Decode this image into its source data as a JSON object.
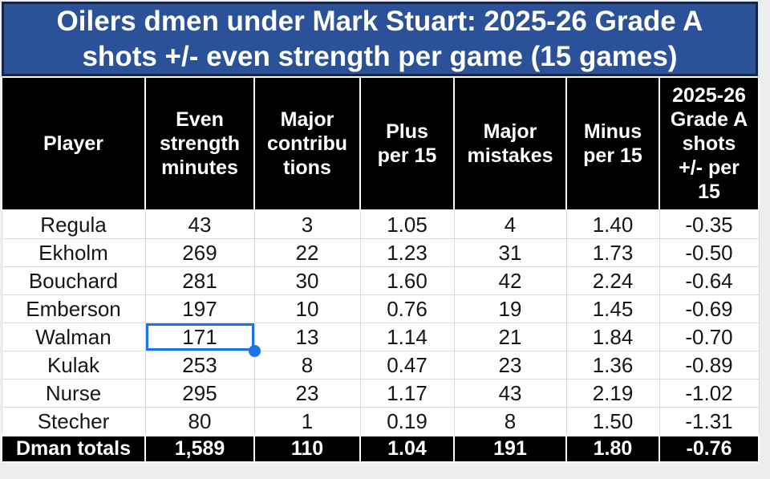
{
  "title": "Oilers dmen under Mark Stuart: 2025-26 Grade A\nshots +/- even strength per game (15 games)",
  "colors": {
    "page_bg": "#ECEDEF",
    "banner_bg": "#2B5198",
    "banner_border": "#16254A",
    "banner_text": "#FFFFFF",
    "header_bg": "#000000",
    "header_text": "#FFFFFF",
    "gridline": "#D7DBDF",
    "selection": "#1A73E8"
  },
  "table": {
    "columns": [
      "Player",
      "Even\nstrength\nminutes",
      "Major\ncontribu\ntions",
      "Plus\nper 15",
      "Major\nmistakes",
      "Minus\nper 15",
      "2025-26\nGrade A\nshots\n+/- per\n15"
    ],
    "rows": [
      {
        "cells": [
          "Regula",
          "43",
          "3",
          "1.05",
          "4",
          "1.40",
          "-0.35"
        ]
      },
      {
        "cells": [
          "Ekholm",
          "269",
          "22",
          "1.23",
          "31",
          "1.73",
          "-0.50"
        ]
      },
      {
        "cells": [
          "Bouchard",
          "281",
          "30",
          "1.60",
          "42",
          "2.24",
          "-0.64"
        ]
      },
      {
        "cells": [
          "Emberson",
          "197",
          "10",
          "0.76",
          "19",
          "1.45",
          "-0.69"
        ]
      },
      {
        "cells": [
          "Walman",
          "171",
          "13",
          "1.14",
          "21",
          "1.84",
          "-0.70"
        ]
      },
      {
        "cells": [
          "Kulak",
          "253",
          "8",
          "0.47",
          "23",
          "1.36",
          "-0.89"
        ]
      },
      {
        "cells": [
          "Nurse",
          "295",
          "23",
          "1.17",
          "43",
          "2.19",
          "-1.02"
        ]
      },
      {
        "cells": [
          "Stecher",
          "80",
          "1",
          "0.19",
          "8",
          "1.50",
          "-1.31"
        ]
      }
    ],
    "totals": {
      "cells": [
        "Dman totals",
        "1,589",
        "110",
        "1.04",
        "191",
        "1.80",
        "-0.76"
      ]
    },
    "selection": {
      "row_index": 4,
      "col_index": 1,
      "value": "171"
    }
  }
}
